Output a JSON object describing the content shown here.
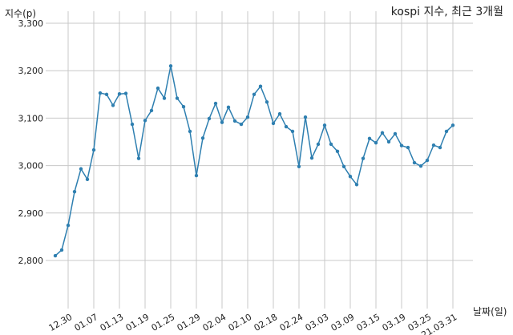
{
  "chart_data": {
    "type": "line",
    "title": "kospi 지수, 최근 3개월",
    "xlabel": "날짜(일)",
    "ylabel": "지수(p)",
    "ylim": [
      2705,
      3300
    ],
    "yticks": [
      2800,
      2900,
      3000,
      3100,
      3200,
      3300
    ],
    "ytick_labels": [
      "2,800",
      "2,900",
      "3,000",
      "3,100",
      "3,200",
      "3,300"
    ],
    "xtick_index": [
      2,
      6,
      10,
      14,
      18,
      22,
      26,
      30,
      34,
      38,
      42,
      46,
      50,
      54,
      58,
      62
    ],
    "xtick_labels": [
      "12.30",
      "01.07",
      "01.13",
      "01.19",
      "01.25",
      "01.29",
      "02.04",
      "02.10",
      "02.18",
      "02.24",
      "03.03",
      "03.09",
      "03.15",
      "03.19",
      "03.25",
      "21.03.31"
    ],
    "grid": true,
    "line_color": "#2e7fb0",
    "series": [
      {
        "name": "kospi",
        "values": [
          2810,
          2822,
          2874,
          2945,
          2993,
          2971,
          3033,
          3153,
          3150,
          3127,
          3151,
          3152,
          3087,
          3015,
          3095,
          3116,
          3163,
          3142,
          3210,
          3142,
          3124,
          3072,
          2979,
          3058,
          3099,
          3131,
          3091,
          3123,
          3094,
          3087,
          3102,
          3150,
          3167,
          3134,
          3089,
          3109,
          3082,
          3072,
          2998,
          3102,
          3016,
          3045,
          3085,
          3045,
          3030,
          2998,
          2977,
          2960,
          3015,
          3057,
          3048,
          3069,
          3050,
          3067,
          3042,
          3038,
          3006,
          2999,
          3011,
          3043,
          3038,
          3072,
          3085
        ]
      }
    ]
  }
}
